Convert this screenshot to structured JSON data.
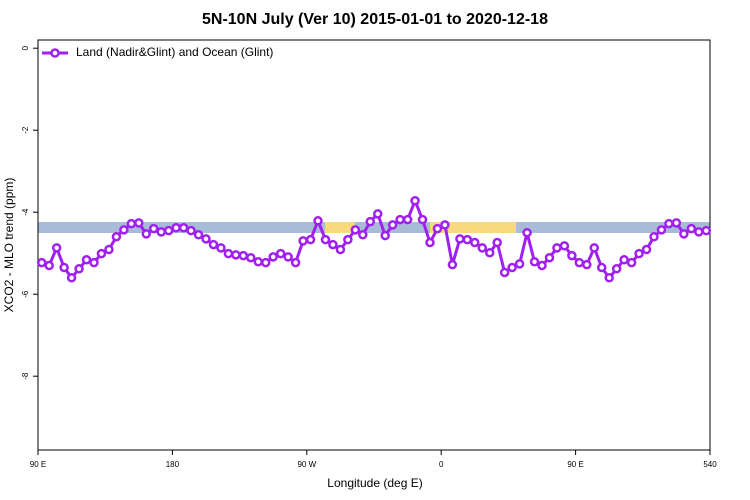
{
  "chart_data": {
    "type": "line",
    "title": "5N-10N July (Ver 10)   2015-01-01 to 2020-12-18",
    "x_label": "Longitude (deg E)",
    "y_label": "XCO2 - MLO trend (ppm)",
    "x": [
      92.5,
      97.5,
      102.5,
      107.5,
      112.5,
      117.5,
      122.5,
      127.5,
      132.5,
      137.5,
      142.5,
      147.5,
      152.5,
      157.5,
      162.5,
      167.5,
      172.5,
      177.5,
      182.5,
      187.5,
      192.5,
      197.5,
      202.5,
      207.5,
      212.5,
      217.5,
      222.5,
      227.5,
      232.5,
      237.5,
      242.5,
      247.5,
      252.5,
      257.5,
      262.5,
      267.5,
      272.5,
      277.5,
      282.5,
      287.5,
      292.5,
      297.5,
      302.5,
      307.5,
      312.5,
      317.5,
      322.5,
      327.5,
      332.5,
      337.5,
      342.5,
      347.5,
      352.5,
      357.5,
      362.5,
      367.5,
      372.5,
      377.5,
      382.5,
      387.5,
      392.5,
      397.5,
      402.5,
      407.5,
      412.5,
      417.5,
      422.5,
      427.5,
      432.5,
      437.5,
      442.5,
      447.5,
      452.5,
      457.5,
      462.5,
      467.5,
      472.5,
      477.5,
      482.5,
      487.5,
      492.5,
      497.5,
      502.5,
      507.5,
      512.5,
      517.5,
      522.5,
      527.5,
      532.5,
      537.5
    ],
    "series": [
      {
        "name": "Land (Nadir&Glint) and Ocean (Glint)",
        "color": "#a020f0",
        "values": [
          -5.23,
          -5.3,
          -4.87,
          -5.35,
          -5.6,
          -5.38,
          -5.16,
          -5.23,
          -5.01,
          -4.91,
          -4.6,
          -4.43,
          -4.28,
          -4.26,
          -4.53,
          -4.4,
          -4.48,
          -4.45,
          -4.38,
          -4.38,
          -4.45,
          -4.55,
          -4.65,
          -4.79,
          -4.87,
          -5.01,
          -5.04,
          -5.06,
          -5.11,
          -5.21,
          -5.23,
          -5.09,
          -5.01,
          -5.09,
          -5.23,
          -4.7,
          -4.67,
          -4.21,
          -4.67,
          -4.79,
          -4.91,
          -4.67,
          -4.43,
          -4.55,
          -4.23,
          -4.04,
          -4.57,
          -4.31,
          -4.18,
          -4.18,
          -3.72,
          -4.18,
          -4.74,
          -4.4,
          -4.31,
          -5.28,
          -4.65,
          -4.67,
          -4.74,
          -4.87,
          -4.99,
          -4.74,
          -5.47,
          -5.35,
          -5.26,
          -4.5,
          -5.21,
          -5.3,
          -5.11,
          -4.87,
          -4.82,
          -5.06,
          -5.23,
          -5.28,
          -4.87,
          -5.35,
          -5.6,
          -5.38,
          -5.16,
          -5.23,
          -5.01,
          -4.91,
          -4.6,
          -4.43,
          -4.28,
          -4.26,
          -4.53,
          -4.4,
          -4.48,
          -4.45
        ]
      }
    ],
    "xlim": [
      90,
      540
    ],
    "xticks": [
      {
        "value": 90,
        "label": "90 E"
      },
      180,
      {
        "value": 270,
        "label": "90 W"
      },
      {
        "value": 360,
        "label": "0"
      },
      {
        "value": 450,
        "label": "90 E"
      },
      540
    ],
    "ylim": [
      -9.8,
      0.2
    ],
    "yticks": [
      0,
      -2,
      -4,
      -6,
      -8
    ],
    "legend": "top-left"
  }
}
